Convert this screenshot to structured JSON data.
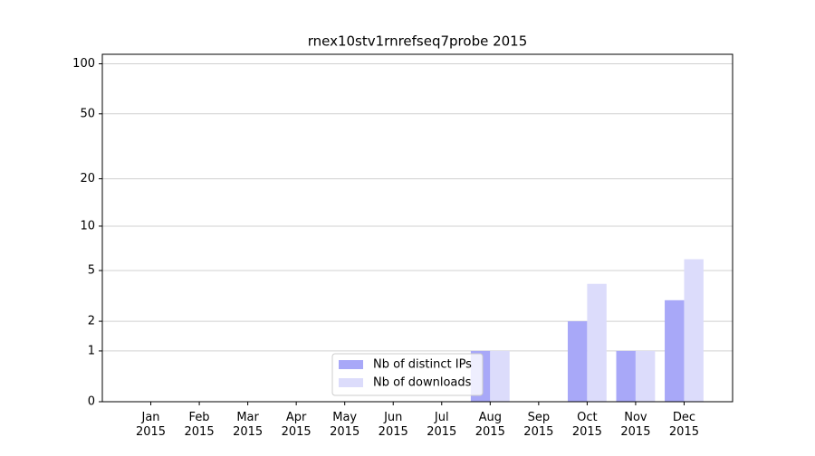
{
  "chart_data": {
    "type": "bar",
    "title": "rnex10stv1rnrefseq7probe 2015",
    "categories": [
      [
        "Jan",
        "2015"
      ],
      [
        "Feb",
        "2015"
      ],
      [
        "Mar",
        "2015"
      ],
      [
        "Apr",
        "2015"
      ],
      [
        "May",
        "2015"
      ],
      [
        "Jun",
        "2015"
      ],
      [
        "Jul",
        "2015"
      ],
      [
        "Aug",
        "2015"
      ],
      [
        "Sep",
        "2015"
      ],
      [
        "Oct",
        "2015"
      ],
      [
        "Nov",
        "2015"
      ],
      [
        "Dec",
        "2015"
      ]
    ],
    "series": [
      {
        "name": "Nb of distinct IPs",
        "color": "#a8a8f8",
        "values": [
          0,
          0,
          0,
          0,
          0,
          0,
          0,
          1,
          0,
          2,
          1,
          3
        ]
      },
      {
        "name": "Nb of downloads",
        "color": "#dcdcfb",
        "values": [
          0,
          0,
          0,
          0,
          0,
          0,
          0,
          1,
          0,
          4,
          1,
          6
        ]
      }
    ],
    "yscale": "log1p",
    "ylim": [
      0,
      114
    ],
    "yticks": [
      0,
      1,
      2,
      5,
      10,
      20,
      50,
      100
    ],
    "grid": true,
    "legend": "lower center"
  }
}
